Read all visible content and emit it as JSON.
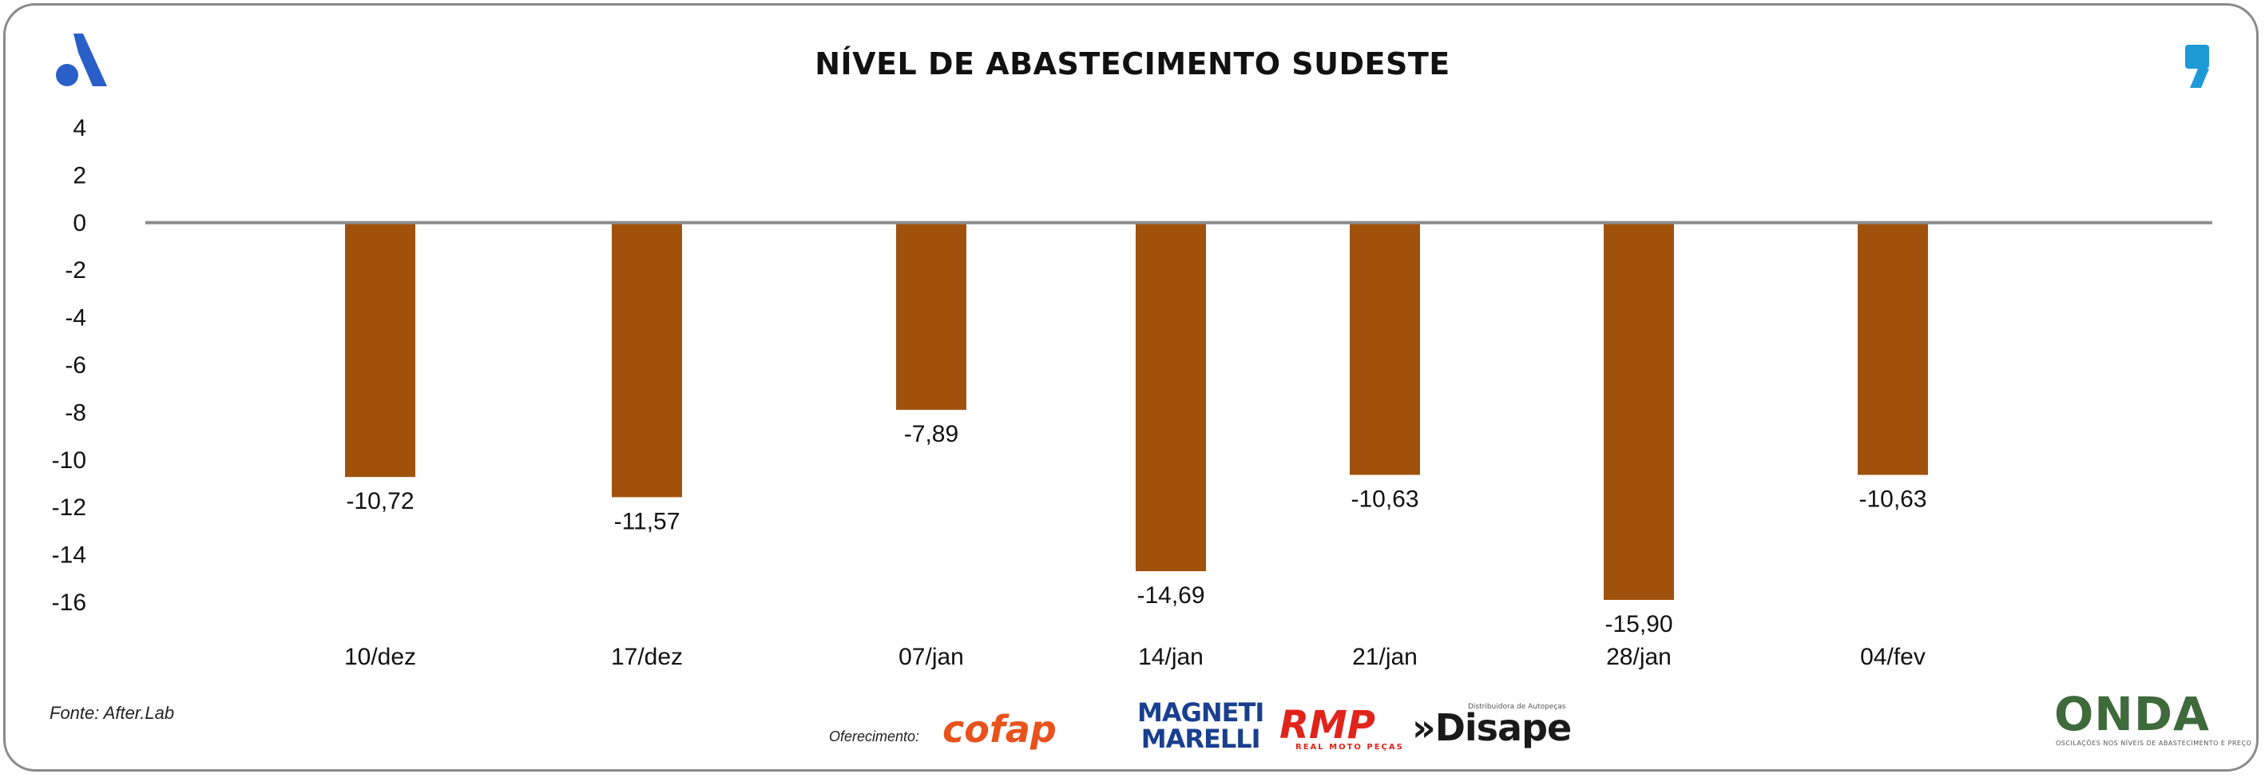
{
  "title": "NÍVEL DE ABASTECIMENTO SUDESTE",
  "source": "Fonte: After.Lab",
  "sponsors": {
    "label": "Oferecimento:",
    "cofap": "cofap",
    "magneti_line1": "MAGNETI",
    "magneti_line2": "MARELLI",
    "rmp": "RMP",
    "rmp_sub": "REAL MOTO PEÇAS",
    "disape": "»Disape",
    "disape_sub": "Distribuidora de Autopeças"
  },
  "brand": {
    "onda": "ONDA",
    "onda_sub": "OSCILAÇÕES NOS NÍVEIS DE ABASTECIMENTO E PREÇO"
  },
  "colors": {
    "bar": "#a0520c",
    "axis": "#8c8c8c",
    "logo_left": "#2b5fc8",
    "logo_right": "#1d9ad6"
  },
  "chart_data": {
    "type": "bar",
    "categories": [
      "10/dez",
      "17/dez",
      "07/jan",
      "14/jan",
      "21/jan",
      "28/jan",
      "04/fev"
    ],
    "values": [
      -10.72,
      -11.57,
      -7.89,
      -14.69,
      -10.63,
      -15.9,
      -10.63
    ],
    "value_labels": [
      "-10,72",
      "-11,57",
      "-7,89",
      "-14,69",
      "-10,63",
      "-15,90",
      "-10,63"
    ],
    "yticks": [
      "4",
      "2",
      "0",
      "-2",
      "-4",
      "-6",
      "-8",
      "-10",
      "-12",
      "-14",
      "-16"
    ],
    "ylim": [
      -16,
      4
    ],
    "title": "NÍVEL DE ABASTECIMENTO SUDESTE",
    "xlabel": "",
    "ylabel": "",
    "grid": false,
    "legend": false
  }
}
